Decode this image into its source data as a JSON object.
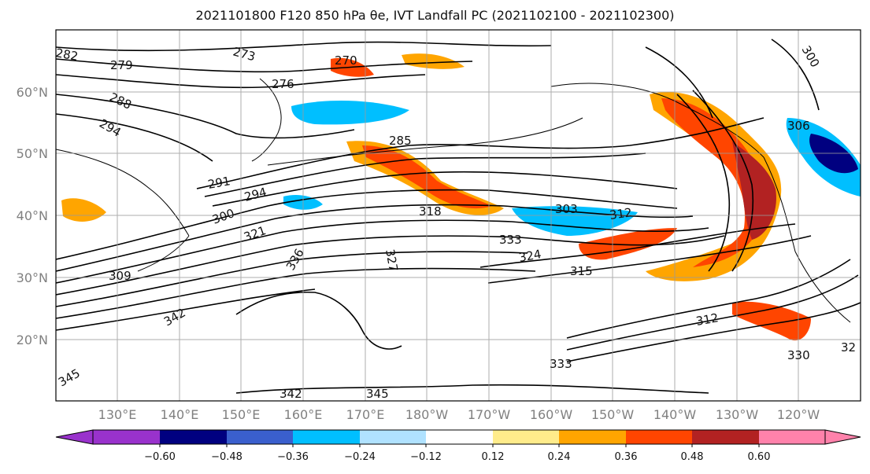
{
  "title": "2021101800 F120 850 hPa θe, IVT Landfall PC (2021102100 - 2021102300)",
  "map": {
    "lat_labels": [
      "60°N",
      "50°N",
      "40°N",
      "30°N",
      "20°N"
    ],
    "lon_labels": [
      "130°E",
      "140°E",
      "150°E",
      "160°E",
      "170°E",
      "180°W",
      "170°W",
      "160°W",
      "150°W",
      "140°W",
      "130°W",
      "120°W"
    ],
    "contour_labels": [
      "282",
      "279",
      "273",
      "270",
      "276",
      "288",
      "294",
      "285",
      "291",
      "294",
      "300",
      "321",
      "318",
      "303",
      "312",
      "333",
      "324",
      "315",
      "309",
      "342",
      "336",
      "327",
      "345",
      "342",
      "345",
      "312",
      "330",
      "333",
      "306",
      "300",
      "32"
    ]
  },
  "colorbar": {
    "colors": [
      "#9932cc",
      "#000080",
      "#3a5fcd",
      "#00bfff",
      "#b0e2ff",
      "#ffffff",
      "#ffec8b",
      "#ffa500",
      "#ff4500",
      "#b22222",
      "#ff82ab"
    ],
    "ticks": [
      "−0.60",
      "−0.48",
      "−0.36",
      "−0.24",
      "−0.12",
      "0.12",
      "0.24",
      "0.36",
      "0.48",
      "0.60"
    ]
  }
}
